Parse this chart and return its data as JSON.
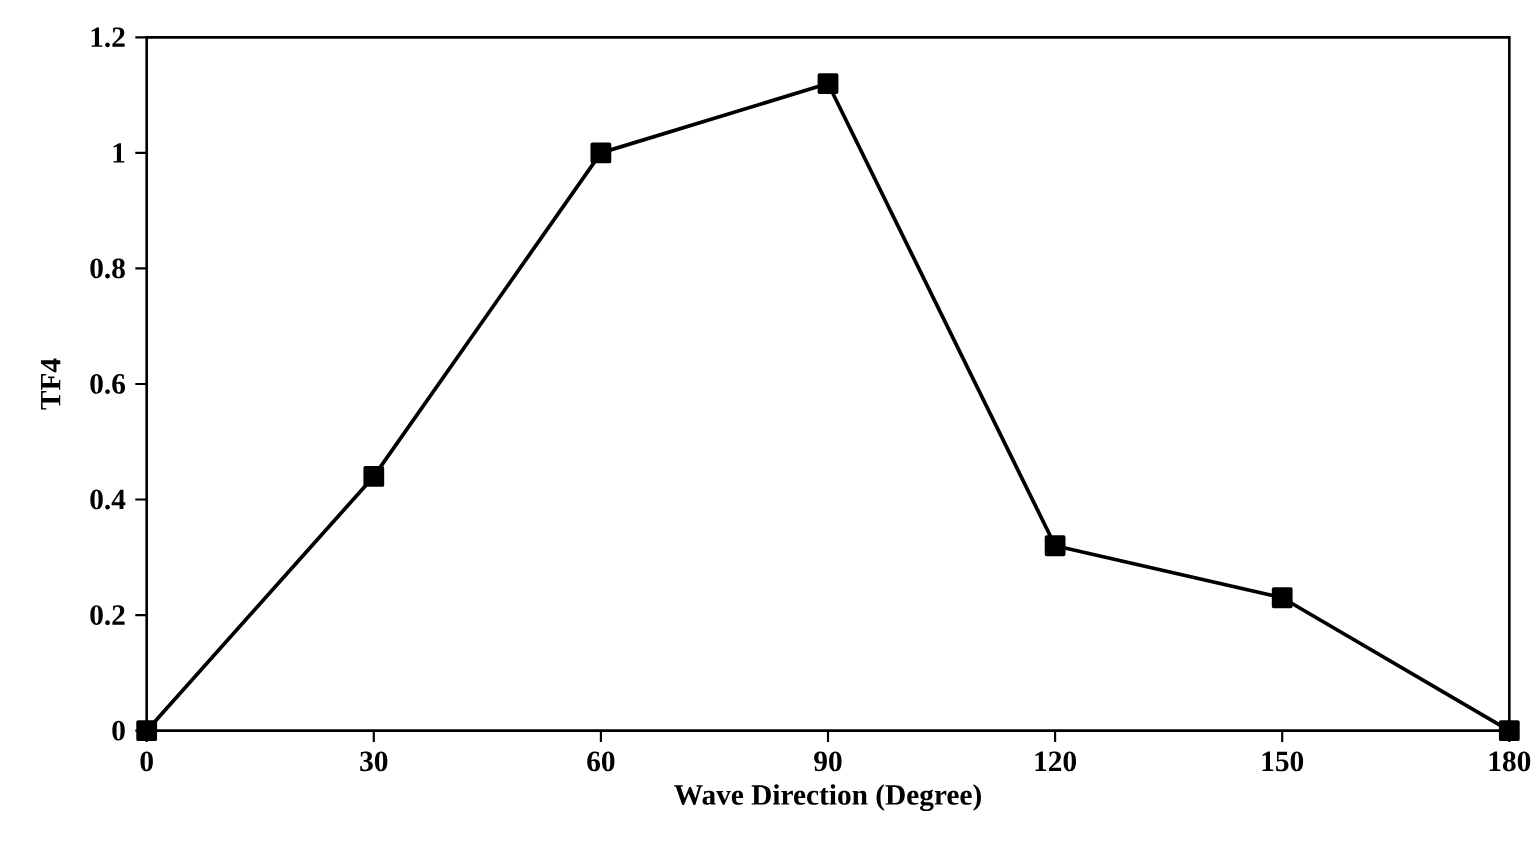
{
  "chart_data": {
    "type": "line",
    "xlabel": "Wave Direction (Degree)",
    "ylabel": "TF4",
    "x": [
      0,
      30,
      60,
      90,
      120,
      150,
      180
    ],
    "series": [
      {
        "color": "#000000",
        "values": [
          0,
          0.44,
          1.0,
          1.12,
          0.32,
          0.23,
          0
        ]
      }
    ],
    "xlim": [
      0,
      180
    ],
    "xticks": [
      0,
      30,
      60,
      90,
      120,
      150,
      180
    ],
    "ylim": [
      0,
      1.2
    ],
    "yticks": [
      0,
      0.2,
      0.4,
      0.6,
      0.8,
      1,
      1.2
    ],
    "grid": false,
    "marker": "square",
    "line_style": "solid"
  }
}
